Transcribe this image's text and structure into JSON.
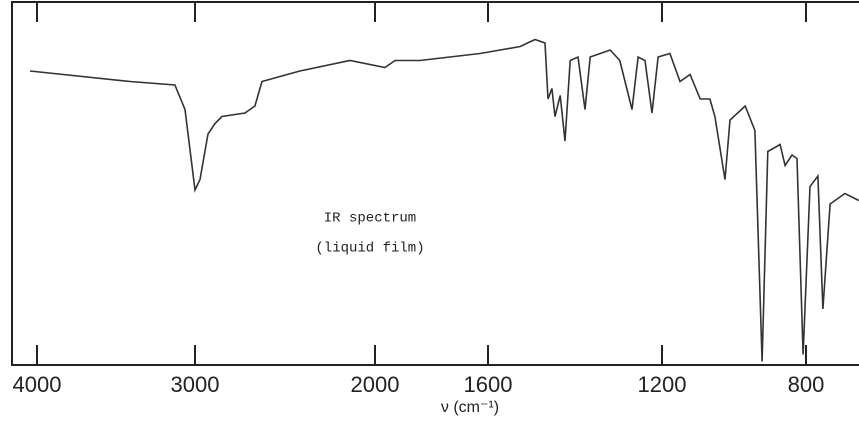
{
  "chart_data": {
    "type": "line",
    "annotations": [
      "IR spectrum",
      "(liquid film)"
    ],
    "x_label": "ν (cm⁻¹)",
    "xlim": [
      4160,
      650
    ],
    "ylim": [
      0,
      100
    ],
    "xticks": [
      4000,
      3000,
      2000,
      1600,
      1200,
      800
    ],
    "series": [
      {
        "color": "#333333",
        "x": [
          4044,
          3411,
          3127,
          3063,
          3000,
          2972,
          2928,
          2889,
          2850,
          2722,
          2667,
          2628,
          2417,
          2139,
          1965,
          1929,
          1841,
          1735,
          1628,
          1572,
          1526,
          1492,
          1469,
          1462,
          1453,
          1446,
          1434,
          1423,
          1411,
          1393,
          1377,
          1365,
          1319,
          1297,
          1269,
          1255,
          1239,
          1223,
          1209,
          1178,
          1150,
          1122,
          1094,
          1067,
          1053,
          1025,
          1011,
          969,
          942,
          922,
          906,
          872,
          858,
          839,
          825,
          808,
          789,
          767,
          753,
          733,
          692,
          653
        ],
        "values": [
          84,
          81,
          80,
          73,
          50,
          53,
          66,
          69,
          71,
          72,
          74,
          81,
          84,
          87,
          85,
          87,
          87,
          88,
          89,
          90,
          91,
          93,
          92,
          76,
          79,
          71,
          77,
          64,
          87,
          88,
          73,
          88,
          90,
          87,
          73,
          88,
          87,
          72,
          88,
          89,
          81,
          83,
          76,
          76,
          71,
          53,
          70,
          74,
          67,
          1,
          61,
          63,
          57,
          60,
          59,
          3,
          51,
          54,
          16,
          46,
          49,
          47
        ]
      }
    ]
  }
}
